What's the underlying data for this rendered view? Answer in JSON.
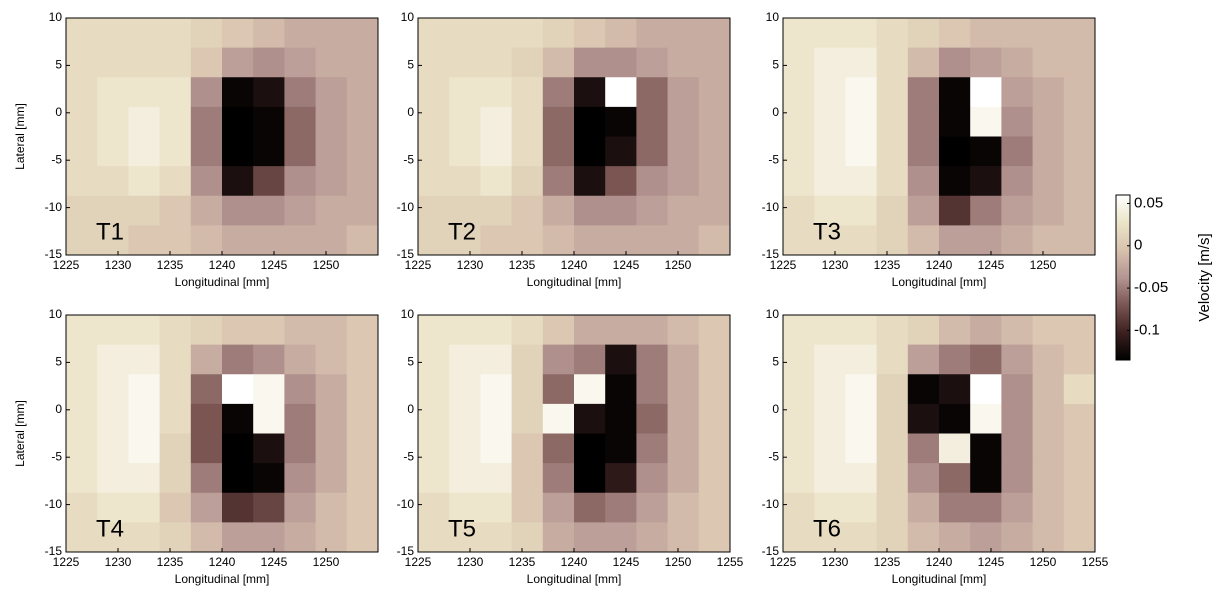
{
  "chart_data": [
    {
      "type": "heatmap",
      "title": "T1",
      "x_label": "Longitudinal [mm]",
      "y_label": "Lateral [mm]",
      "xlim": [
        1225,
        1255
      ],
      "ylim": [
        -15,
        10
      ],
      "xticks": [
        1225,
        1230,
        1235,
        1240,
        1245,
        1250
      ],
      "yticks": [
        -15,
        -10,
        -5,
        0,
        5,
        10
      ],
      "xbins": [
        1225,
        1228,
        1231,
        1234,
        1237,
        1240,
        1243,
        1246,
        1249,
        1252,
        1255
      ],
      "ybins": [
        10,
        6.875,
        3.75,
        0.625,
        -2.5,
        -5.625,
        -8.75,
        -11.875,
        -15
      ],
      "values": [
        [
          0.02,
          0.02,
          0.02,
          0.02,
          0.01,
          0,
          -0.01,
          -0.02,
          -0.02,
          -0.02
        ],
        [
          0.02,
          0.02,
          0.02,
          0.02,
          0,
          -0.03,
          -0.04,
          -0.03,
          -0.02,
          -0.02
        ],
        [
          0.02,
          0.03,
          0.03,
          0.03,
          -0.04,
          -0.13,
          -0.12,
          -0.05,
          -0.03,
          -0.02
        ],
        [
          0.02,
          0.03,
          0.04,
          0.03,
          -0.05,
          -0.14,
          -0.13,
          -0.06,
          -0.03,
          -0.02
        ],
        [
          0.02,
          0.03,
          0.04,
          0.03,
          -0.05,
          -0.14,
          -0.13,
          -0.06,
          -0.03,
          -0.02
        ],
        [
          0.02,
          0.02,
          0.03,
          0.02,
          -0.04,
          -0.12,
          -0.08,
          -0.04,
          -0.03,
          -0.02
        ],
        [
          0.01,
          0.01,
          0.01,
          0,
          -0.02,
          -0.04,
          -0.04,
          -0.03,
          -0.02,
          -0.02
        ],
        [
          0.01,
          0.01,
          0,
          0,
          -0.01,
          -0.02,
          -0.02,
          -0.02,
          -0.02,
          -0.01
        ]
      ]
    },
    {
      "type": "heatmap",
      "title": "T2",
      "x_label": "Longitudinal [mm]",
      "xlim": [
        1225,
        1255
      ],
      "ylim": [
        -15,
        10
      ],
      "xticks": [
        1225,
        1230,
        1235,
        1240,
        1245,
        1250
      ],
      "yticks": [
        -15,
        -10,
        -5,
        0,
        5,
        10
      ],
      "xbins": [
        1225,
        1228,
        1231,
        1234,
        1237,
        1240,
        1243,
        1246,
        1249,
        1252,
        1255
      ],
      "ybins": [
        10,
        6.875,
        3.75,
        0.625,
        -2.5,
        -5.625,
        -8.75,
        -11.875,
        -15
      ],
      "values": [
        [
          0.02,
          0.02,
          0.02,
          0.02,
          0.01,
          0,
          -0.01,
          -0.02,
          -0.02,
          -0.02
        ],
        [
          0.02,
          0.02,
          0.02,
          0.01,
          -0.01,
          -0.04,
          -0.04,
          -0.03,
          -0.02,
          -0.02
        ],
        [
          0.02,
          0.03,
          0.03,
          0.02,
          -0.05,
          -0.12,
          0.06,
          -0.06,
          -0.03,
          -0.02
        ],
        [
          0.02,
          0.03,
          0.04,
          0.02,
          -0.06,
          -0.14,
          -0.13,
          -0.06,
          -0.03,
          -0.02
        ],
        [
          0.02,
          0.03,
          0.04,
          0.02,
          -0.06,
          -0.14,
          -0.12,
          -0.06,
          -0.03,
          -0.02
        ],
        [
          0.02,
          0.02,
          0.03,
          0.01,
          -0.05,
          -0.12,
          -0.07,
          -0.04,
          -0.03,
          -0.02
        ],
        [
          0.01,
          0.01,
          0.01,
          0,
          -0.02,
          -0.04,
          -0.04,
          -0.03,
          -0.02,
          -0.02
        ],
        [
          0.01,
          0.01,
          0,
          0,
          -0.01,
          -0.02,
          -0.02,
          -0.02,
          -0.02,
          -0.01
        ]
      ]
    },
    {
      "type": "heatmap",
      "title": "T3",
      "x_label": "Longitudinal [mm]",
      "xlim": [
        1225,
        1255
      ],
      "ylim": [
        -15,
        10
      ],
      "xticks": [
        1225,
        1230,
        1235,
        1240,
        1245,
        1250
      ],
      "yticks": [
        -15,
        -10,
        -5,
        0,
        5,
        10
      ],
      "xbins": [
        1225,
        1228,
        1231,
        1234,
        1237,
        1240,
        1243,
        1246,
        1249,
        1252,
        1255
      ],
      "ybins": [
        10,
        6.875,
        3.75,
        0.625,
        -2.5,
        -5.625,
        -8.75,
        -11.875,
        -15
      ],
      "values": [
        [
          0.03,
          0.03,
          0.03,
          0.02,
          0.01,
          0,
          -0.01,
          -0.01,
          -0.01,
          -0.01
        ],
        [
          0.03,
          0.04,
          0.04,
          0.02,
          -0.01,
          -0.04,
          -0.03,
          -0.02,
          -0.01,
          -0.01
        ],
        [
          0.03,
          0.04,
          0.05,
          0.02,
          -0.05,
          -0.13,
          0.06,
          -0.03,
          -0.02,
          -0.01
        ],
        [
          0.03,
          0.04,
          0.05,
          0.02,
          -0.05,
          -0.13,
          0.05,
          -0.04,
          -0.02,
          -0.01
        ],
        [
          0.03,
          0.04,
          0.05,
          0.02,
          -0.05,
          -0.14,
          -0.13,
          -0.05,
          -0.02,
          -0.01
        ],
        [
          0.03,
          0.04,
          0.04,
          0.02,
          -0.04,
          -0.13,
          -0.12,
          -0.04,
          -0.02,
          -0.01
        ],
        [
          0.02,
          0.03,
          0.03,
          0.01,
          -0.03,
          -0.09,
          -0.05,
          -0.03,
          -0.02,
          -0.01
        ],
        [
          0.02,
          0.02,
          0.02,
          0.01,
          -0.01,
          -0.03,
          -0.03,
          -0.02,
          -0.01,
          -0.01
        ]
      ]
    },
    {
      "type": "heatmap",
      "title": "T4",
      "x_label": "Longitudinal [mm]",
      "y_label": "Lateral [mm]",
      "xlim": [
        1225,
        1255
      ],
      "ylim": [
        -15,
        10
      ],
      "xticks": [
        1225,
        1230,
        1235,
        1240,
        1245,
        1250
      ],
      "yticks": [
        -15,
        -10,
        -5,
        0,
        5,
        10
      ],
      "xbins": [
        1225,
        1228,
        1231,
        1234,
        1237,
        1240,
        1243,
        1246,
        1249,
        1252,
        1255
      ],
      "ybins": [
        10,
        6.875,
        3.75,
        0.625,
        -2.5,
        -5.625,
        -8.75,
        -11.875,
        -15
      ],
      "values": [
        [
          0.03,
          0.03,
          0.03,
          0.02,
          0.01,
          0,
          0,
          -0.01,
          -0.01,
          0
        ],
        [
          0.03,
          0.04,
          0.04,
          0.02,
          -0.02,
          -0.05,
          -0.04,
          -0.02,
          -0.01,
          0
        ],
        [
          0.03,
          0.04,
          0.05,
          0.02,
          -0.06,
          0.06,
          0.05,
          -0.04,
          -0.02,
          0
        ],
        [
          0.03,
          0.04,
          0.05,
          0.02,
          -0.07,
          -0.13,
          0.05,
          -0.05,
          -0.02,
          0
        ],
        [
          0.03,
          0.04,
          0.05,
          0.01,
          -0.07,
          -0.14,
          -0.12,
          -0.05,
          -0.02,
          0
        ],
        [
          0.03,
          0.04,
          0.04,
          0.01,
          -0.05,
          -0.14,
          -0.13,
          -0.04,
          -0.02,
          0
        ],
        [
          0.02,
          0.03,
          0.03,
          0,
          -0.03,
          -0.09,
          -0.08,
          -0.03,
          -0.01,
          0
        ],
        [
          0.02,
          0.02,
          0.02,
          0.01,
          -0.01,
          -0.03,
          -0.03,
          -0.02,
          -0.01,
          0
        ]
      ]
    },
    {
      "type": "heatmap",
      "title": "T5",
      "x_label": "Longitudinal [mm]",
      "xlim": [
        1225,
        1255
      ],
      "ylim": [
        -15,
        10
      ],
      "xticks": [
        1225,
        1230,
        1235,
        1240,
        1245,
        1250,
        1255
      ],
      "yticks": [
        -15,
        -10,
        -5,
        0,
        5,
        10
      ],
      "xbins": [
        1225,
        1228,
        1231,
        1234,
        1237,
        1240,
        1243,
        1246,
        1249,
        1252,
        1255
      ],
      "ybins": [
        10,
        6.875,
        3.75,
        0.625,
        -2.5,
        -5.625,
        -8.75,
        -11.875,
        -15
      ],
      "values": [
        [
          0.03,
          0.03,
          0.03,
          0.02,
          0,
          -0.02,
          -0.02,
          -0.02,
          -0.01,
          0
        ],
        [
          0.03,
          0.04,
          0.04,
          0.01,
          -0.04,
          -0.05,
          -0.12,
          -0.05,
          -0.02,
          0
        ],
        [
          0.03,
          0.04,
          0.05,
          0.01,
          -0.06,
          0.05,
          -0.13,
          -0.05,
          -0.02,
          0
        ],
        [
          0.03,
          0.04,
          0.05,
          0.01,
          0.05,
          -0.12,
          -0.13,
          -0.06,
          -0.02,
          0
        ],
        [
          0.03,
          0.04,
          0.05,
          0,
          -0.06,
          -0.14,
          -0.13,
          -0.05,
          -0.02,
          0
        ],
        [
          0.03,
          0.04,
          0.04,
          0,
          -0.05,
          -0.14,
          -0.11,
          -0.04,
          -0.02,
          0
        ],
        [
          0.02,
          0.03,
          0.03,
          0,
          -0.03,
          -0.06,
          -0.05,
          -0.03,
          -0.01,
          0
        ],
        [
          0.02,
          0.02,
          0.02,
          0.01,
          -0.02,
          -0.03,
          -0.03,
          -0.02,
          -0.01,
          0
        ]
      ]
    },
    {
      "type": "heatmap",
      "title": "T6",
      "x_label": "Longitudinal [mm]",
      "xlim": [
        1225,
        1255
      ],
      "ylim": [
        -15,
        10
      ],
      "xticks": [
        1225,
        1230,
        1235,
        1240,
        1245,
        1250,
        1255
      ],
      "yticks": [
        -15,
        -10,
        -5,
        0,
        5,
        10
      ],
      "xbins": [
        1225,
        1228,
        1231,
        1234,
        1237,
        1240,
        1243,
        1246,
        1249,
        1252,
        1255
      ],
      "ybins": [
        10,
        6.875,
        3.75,
        0.625,
        -2.5,
        -5.625,
        -8.75,
        -11.875,
        -15
      ],
      "values": [
        [
          0.03,
          0.03,
          0.03,
          0.02,
          0.01,
          -0.01,
          -0.02,
          -0.01,
          0,
          0
        ],
        [
          0.03,
          0.04,
          0.04,
          0.02,
          -0.03,
          -0.05,
          -0.06,
          -0.03,
          -0.01,
          0
        ],
        [
          0.03,
          0.04,
          0.05,
          0.01,
          -0.13,
          -0.12,
          0.06,
          -0.04,
          -0.01,
          0.02
        ],
        [
          0.03,
          0.04,
          0.05,
          0.01,
          -0.12,
          -0.13,
          0.05,
          -0.04,
          -0.01,
          0
        ],
        [
          0.03,
          0.04,
          0.05,
          0.01,
          -0.05,
          0.04,
          -0.13,
          -0.04,
          -0.01,
          0
        ],
        [
          0.03,
          0.04,
          0.04,
          0.01,
          -0.04,
          -0.06,
          -0.13,
          -0.04,
          -0.01,
          0
        ],
        [
          0.02,
          0.03,
          0.03,
          0.01,
          -0.02,
          -0.05,
          -0.05,
          -0.03,
          -0.01,
          0
        ],
        [
          0.02,
          0.02,
          0.02,
          0.01,
          -0.01,
          -0.02,
          -0.03,
          -0.02,
          -0.01,
          0
        ]
      ]
    }
  ],
  "colorbar": {
    "label": "Velocity [m/s]",
    "lim": [
      -0.135,
      0.06
    ],
    "ticks": [
      -0.1,
      -0.05,
      0,
      0.05
    ],
    "colors": [
      "#000000",
      "#3c2020",
      "#7a5552",
      "#b39591",
      "#d8c2ae",
      "#ebe4c8",
      "#ffffff"
    ]
  }
}
